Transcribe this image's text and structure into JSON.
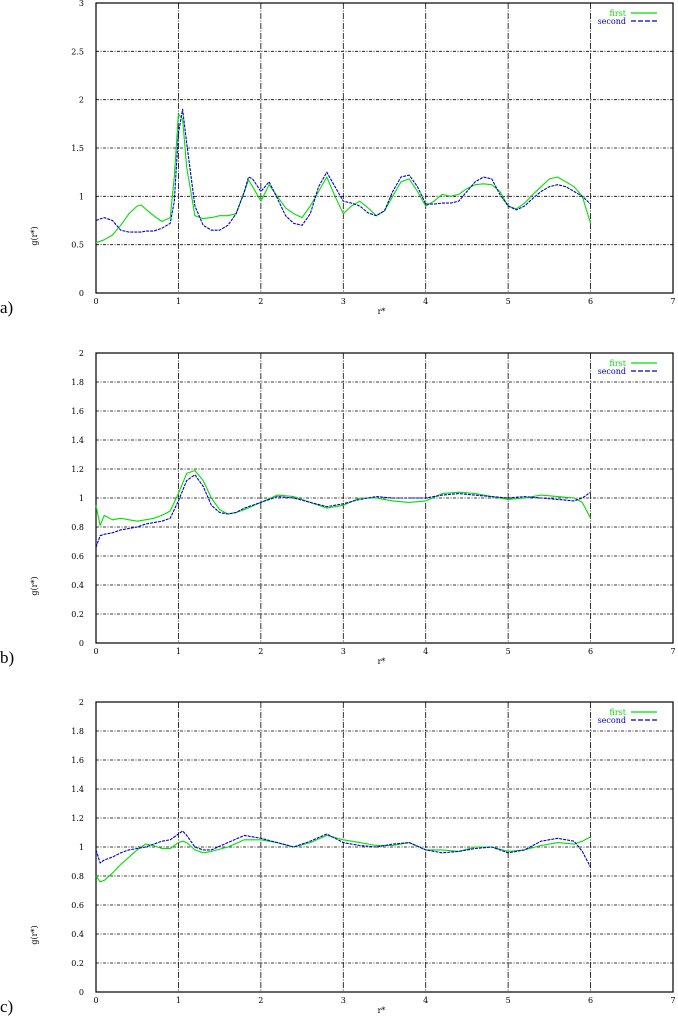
{
  "colors": {
    "first": "#00e000",
    "second": "#0000c8",
    "grid": "#000000"
  },
  "legend": {
    "first": "first",
    "second": "second"
  },
  "panels": [
    {
      "label": "a)",
      "ylabel": "g(r*)",
      "xlabel": "r*"
    },
    {
      "label": "b)",
      "ylabel": "g(r*)",
      "xlabel": "r*"
    },
    {
      "label": "c)",
      "ylabel": "g(r*)",
      "xlabel": "r*"
    }
  ],
  "chart_data": [
    {
      "type": "line",
      "title": "a)",
      "xlabel": "r*",
      "ylabel": "g(r*)",
      "xlim": [
        0,
        7
      ],
      "ylim": [
        0,
        3
      ],
      "xticks": [
        0,
        1,
        2,
        3,
        4,
        5,
        6,
        7
      ],
      "yticks": [
        0,
        0.5,
        1,
        1.5,
        2,
        2.5,
        3
      ],
      "grid": true,
      "legend_position": "top-right",
      "x": [
        0,
        0.1,
        0.2,
        0.3,
        0.4,
        0.5,
        0.55,
        0.6,
        0.7,
        0.8,
        0.9,
        0.95,
        1.0,
        1.05,
        1.1,
        1.2,
        1.3,
        1.4,
        1.5,
        1.6,
        1.7,
        1.8,
        1.85,
        1.9,
        2.0,
        2.1,
        2.2,
        2.3,
        2.4,
        2.5,
        2.6,
        2.7,
        2.8,
        2.9,
        3.0,
        3.1,
        3.2,
        3.3,
        3.4,
        3.5,
        3.6,
        3.7,
        3.8,
        3.9,
        4.0,
        4.1,
        4.2,
        4.3,
        4.4,
        4.5,
        4.6,
        4.7,
        4.8,
        4.9,
        5.0,
        5.1,
        5.2,
        5.3,
        5.4,
        5.5,
        5.6,
        5.7,
        5.8,
        5.9,
        6.0
      ],
      "series": [
        {
          "name": "first",
          "style": "solid",
          "color": "#00e000",
          "values": [
            0.52,
            0.55,
            0.6,
            0.7,
            0.82,
            0.9,
            0.91,
            0.87,
            0.8,
            0.74,
            0.78,
            1.2,
            1.85,
            1.8,
            1.3,
            0.8,
            0.77,
            0.78,
            0.8,
            0.8,
            0.82,
            1.05,
            1.17,
            1.1,
            0.95,
            1.12,
            1.0,
            0.88,
            0.82,
            0.78,
            0.9,
            1.05,
            1.2,
            1.0,
            0.82,
            0.9,
            0.95,
            0.88,
            0.8,
            0.85,
            1.0,
            1.15,
            1.18,
            1.05,
            0.9,
            0.95,
            1.02,
            1.0,
            1.02,
            1.08,
            1.12,
            1.13,
            1.12,
            1.05,
            0.9,
            0.87,
            0.93,
            1.02,
            1.1,
            1.18,
            1.2,
            1.15,
            1.1,
            1.0,
            0.72
          ]
        },
        {
          "name": "second",
          "style": "dashed",
          "color": "#0000c8",
          "values": [
            0.75,
            0.78,
            0.75,
            0.65,
            0.63,
            0.63,
            0.63,
            0.64,
            0.64,
            0.67,
            0.72,
            0.95,
            1.65,
            1.9,
            1.55,
            0.9,
            0.7,
            0.65,
            0.65,
            0.7,
            0.82,
            1.05,
            1.2,
            1.18,
            1.05,
            1.15,
            0.98,
            0.8,
            0.72,
            0.7,
            0.82,
            1.1,
            1.25,
            1.1,
            0.95,
            0.93,
            0.9,
            0.83,
            0.8,
            0.85,
            1.05,
            1.2,
            1.22,
            1.1,
            0.92,
            0.92,
            0.93,
            0.93,
            0.95,
            1.05,
            1.15,
            1.2,
            1.18,
            1.02,
            0.9,
            0.86,
            0.9,
            0.98,
            1.05,
            1.1,
            1.12,
            1.1,
            1.05,
            1.0,
            0.92
          ]
        }
      ]
    },
    {
      "type": "line",
      "title": "b)",
      "xlabel": "r*",
      "ylabel": "g(r*)",
      "xlim": [
        0,
        7
      ],
      "ylim": [
        0,
        2
      ],
      "xticks": [
        0,
        1,
        2,
        3,
        4,
        5,
        6,
        7
      ],
      "yticks": [
        0,
        0.2,
        0.4,
        0.6,
        0.8,
        1,
        1.2,
        1.4,
        1.6,
        1.8,
        2
      ],
      "grid": true,
      "legend_position": "top-right",
      "x": [
        0,
        0.05,
        0.1,
        0.2,
        0.3,
        0.4,
        0.5,
        0.6,
        0.7,
        0.8,
        0.9,
        1.0,
        1.1,
        1.2,
        1.3,
        1.4,
        1.5,
        1.6,
        1.7,
        1.8,
        2.0,
        2.2,
        2.4,
        2.6,
        2.8,
        3.0,
        3.2,
        3.4,
        3.6,
        3.8,
        4.0,
        4.2,
        4.4,
        4.6,
        4.8,
        5.0,
        5.2,
        5.4,
        5.6,
        5.8,
        5.9,
        6.0
      ],
      "series": [
        {
          "name": "first",
          "style": "solid",
          "color": "#00e000",
          "values": [
            0.95,
            0.81,
            0.88,
            0.85,
            0.86,
            0.85,
            0.84,
            0.85,
            0.86,
            0.88,
            0.91,
            1.03,
            1.17,
            1.19,
            1.12,
            1.0,
            0.92,
            0.89,
            0.9,
            0.92,
            0.97,
            1.02,
            1.01,
            0.97,
            0.93,
            0.95,
            1.0,
            1.0,
            0.98,
            0.97,
            0.98,
            1.03,
            1.04,
            1.03,
            1.01,
            0.99,
            1.0,
            1.02,
            1.01,
            1.0,
            0.97,
            0.86
          ]
        },
        {
          "name": "second",
          "style": "dashed",
          "color": "#0000c8",
          "values": [
            0.66,
            0.74,
            0.75,
            0.76,
            0.78,
            0.79,
            0.8,
            0.82,
            0.83,
            0.84,
            0.86,
            0.98,
            1.12,
            1.16,
            1.08,
            0.95,
            0.9,
            0.89,
            0.9,
            0.93,
            0.97,
            1.01,
            1.0,
            0.97,
            0.94,
            0.96,
            0.99,
            1.01,
            1.0,
            1.0,
            1.0,
            1.02,
            1.03,
            1.02,
            1.01,
            1.0,
            1.01,
            1.0,
            0.99,
            0.98,
            1.0,
            1.04
          ]
        }
      ]
    },
    {
      "type": "line",
      "title": "c)",
      "xlabel": "r*",
      "ylabel": "g(r*)",
      "xlim": [
        0,
        7
      ],
      "ylim": [
        0,
        2
      ],
      "xticks": [
        0,
        1,
        2,
        3,
        4,
        5,
        6,
        7
      ],
      "yticks": [
        0,
        0.2,
        0.4,
        0.6,
        0.8,
        1,
        1.2,
        1.4,
        1.6,
        1.8,
        2
      ],
      "grid": true,
      "legend_position": "top-right",
      "x": [
        0,
        0.05,
        0.1,
        0.2,
        0.3,
        0.4,
        0.5,
        0.6,
        0.7,
        0.8,
        0.9,
        1.0,
        1.05,
        1.1,
        1.2,
        1.3,
        1.4,
        1.6,
        1.8,
        2.0,
        2.2,
        2.4,
        2.6,
        2.8,
        3.0,
        3.2,
        3.4,
        3.6,
        3.8,
        4.0,
        4.2,
        4.4,
        4.6,
        4.8,
        5.0,
        5.2,
        5.4,
        5.6,
        5.8,
        5.9,
        6.0
      ],
      "series": [
        {
          "name": "first",
          "style": "solid",
          "color": "#00e000",
          "values": [
            0.8,
            0.76,
            0.77,
            0.82,
            0.88,
            0.93,
            0.98,
            1.02,
            1.01,
            0.99,
            0.99,
            1.03,
            1.04,
            1.03,
            0.98,
            0.96,
            0.97,
            1.0,
            1.05,
            1.05,
            1.03,
            1.0,
            1.03,
            1.08,
            1.05,
            1.03,
            1.01,
            1.01,
            1.03,
            0.98,
            0.98,
            0.97,
            1.0,
            1.0,
            0.97,
            0.98,
            1.01,
            1.03,
            1.02,
            1.04,
            1.07
          ]
        },
        {
          "name": "second",
          "style": "dashed",
          "color": "#0000c8",
          "values": [
            0.98,
            0.89,
            0.91,
            0.93,
            0.96,
            0.98,
            0.99,
            1.0,
            1.02,
            1.04,
            1.05,
            1.09,
            1.11,
            1.08,
            1.0,
            0.98,
            0.98,
            1.03,
            1.08,
            1.06,
            1.03,
            1.0,
            1.04,
            1.09,
            1.03,
            1.01,
            1.0,
            1.02,
            1.03,
            0.98,
            0.96,
            0.97,
            0.99,
            1.0,
            0.96,
            0.98,
            1.04,
            1.06,
            1.04,
            0.97,
            0.86
          ]
        }
      ]
    }
  ]
}
